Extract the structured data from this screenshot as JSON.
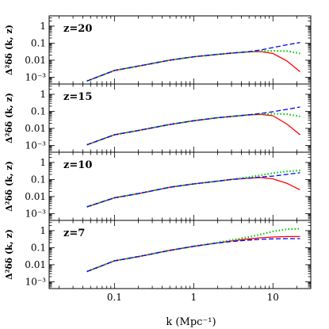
{
  "chart_data": [
    {
      "type": "line",
      "panel_label": "z=20",
      "ylabel": "Δ²δδ (k, z)",
      "xscale": "log",
      "yscale": "log",
      "xlim": [
        0.015,
        30
      ],
      "ylim": [
        0.0004,
        4
      ],
      "yticks": [
        1,
        0.1,
        0.01,
        0.001
      ],
      "ytick_labels": [
        "1",
        "0.1",
        "0.01",
        "10⁻³"
      ],
      "grid": false,
      "series": [
        {
          "color": "#ff0000",
          "style": "solid",
          "x": [
            0.045,
            0.1,
            0.2,
            0.5,
            1,
            2,
            3,
            5,
            7,
            10,
            15,
            22
          ],
          "y": [
            0.0006,
            0.0025,
            0.0045,
            0.01,
            0.016,
            0.022,
            0.026,
            0.031,
            0.032,
            0.025,
            0.009,
            0.0021
          ]
        },
        {
          "color": "#00cc00",
          "style": "dotted",
          "x": [
            0.045,
            0.1,
            0.2,
            0.5,
            1,
            2,
            3,
            5,
            7,
            10,
            15,
            22
          ],
          "y": [
            0.0006,
            0.0025,
            0.0045,
            0.01,
            0.016,
            0.022,
            0.026,
            0.031,
            0.034,
            0.036,
            0.034,
            0.025
          ]
        },
        {
          "color": "#0000ff",
          "style": "dashed",
          "x": [
            0.045,
            0.1,
            0.2,
            0.5,
            1,
            2,
            3,
            5,
            7,
            10,
            15,
            22
          ],
          "y": [
            0.0006,
            0.0025,
            0.0045,
            0.01,
            0.016,
            0.022,
            0.026,
            0.032,
            0.04,
            0.055,
            0.08,
            0.11
          ]
        }
      ]
    },
    {
      "type": "line",
      "panel_label": "z=15",
      "ylabel": "Δ²δδ (k, z)",
      "xscale": "log",
      "yscale": "log",
      "xlim": [
        0.015,
        30
      ],
      "ylim": [
        0.0004,
        4
      ],
      "yticks": [
        1,
        0.1,
        0.01,
        0.001
      ],
      "ytick_labels": [
        "1",
        "0.1",
        "0.01",
        "10⁻³"
      ],
      "grid": false,
      "series": [
        {
          "color": "#ff0000",
          "style": "solid",
          "x": [
            0.045,
            0.1,
            0.2,
            0.5,
            1,
            2,
            3,
            5,
            7,
            10,
            15,
            22
          ],
          "y": [
            0.0011,
            0.0042,
            0.0075,
            0.017,
            0.028,
            0.042,
            0.05,
            0.062,
            0.066,
            0.055,
            0.018,
            0.0042
          ]
        },
        {
          "color": "#00cc00",
          "style": "dotted",
          "x": [
            0.045,
            0.1,
            0.2,
            0.5,
            1,
            2,
            3,
            5,
            7,
            10,
            15,
            22
          ],
          "y": [
            0.0011,
            0.0042,
            0.0075,
            0.017,
            0.028,
            0.042,
            0.05,
            0.062,
            0.068,
            0.072,
            0.068,
            0.05
          ]
        },
        {
          "color": "#0000ff",
          "style": "dashed",
          "x": [
            0.045,
            0.1,
            0.2,
            0.5,
            1,
            2,
            3,
            5,
            7,
            10,
            15,
            22
          ],
          "y": [
            0.0011,
            0.0042,
            0.0075,
            0.017,
            0.028,
            0.042,
            0.05,
            0.063,
            0.075,
            0.095,
            0.13,
            0.18
          ]
        }
      ]
    },
    {
      "type": "line",
      "panel_label": "z=10",
      "ylabel": "Δ²δδ (k, z)",
      "xscale": "log",
      "yscale": "log",
      "xlim": [
        0.015,
        30
      ],
      "ylim": [
        0.0004,
        4
      ],
      "yticks": [
        1,
        0.1,
        0.01,
        0.001
      ],
      "ytick_labels": [
        "1",
        "0.1",
        "0.01",
        "10⁻³"
      ],
      "grid": false,
      "series": [
        {
          "color": "#ff0000",
          "style": "solid",
          "x": [
            0.045,
            0.1,
            0.2,
            0.5,
            1,
            2,
            3,
            5,
            7,
            10,
            15,
            22
          ],
          "y": [
            0.0025,
            0.0085,
            0.015,
            0.035,
            0.055,
            0.08,
            0.1,
            0.12,
            0.13,
            0.11,
            0.06,
            0.025
          ]
        },
        {
          "color": "#00cc00",
          "style": "dotted",
          "x": [
            0.045,
            0.1,
            0.2,
            0.5,
            1,
            2,
            3,
            5,
            7,
            10,
            15,
            22
          ],
          "y": [
            0.0025,
            0.0085,
            0.015,
            0.035,
            0.055,
            0.08,
            0.1,
            0.14,
            0.18,
            0.24,
            0.3,
            0.34
          ]
        },
        {
          "color": "#0000ff",
          "style": "dashed",
          "x": [
            0.045,
            0.1,
            0.2,
            0.5,
            1,
            2,
            3,
            5,
            7,
            10,
            15,
            22
          ],
          "y": [
            0.0025,
            0.0085,
            0.015,
            0.035,
            0.055,
            0.08,
            0.1,
            0.12,
            0.14,
            0.16,
            0.2,
            0.25
          ]
        }
      ]
    },
    {
      "type": "line",
      "panel_label": "z=7",
      "xlabel": "k (Mpc⁻¹)",
      "ylabel": "Δ²δδ (k, z)",
      "xscale": "log",
      "yscale": "log",
      "xlim": [
        0.015,
        30
      ],
      "ylim": [
        0.0004,
        4
      ],
      "xticks": [
        0.1,
        1,
        10
      ],
      "xtick_labels": [
        "0.1",
        "1",
        "10"
      ],
      "yticks": [
        1,
        0.1,
        0.01,
        0.001
      ],
      "ytick_labels": [
        "1",
        "0.1",
        "0.01",
        "10⁻³"
      ],
      "grid": false,
      "series": [
        {
          "color": "#ff0000",
          "style": "solid",
          "x": [
            0.045,
            0.1,
            0.2,
            0.5,
            1,
            2,
            3,
            5,
            7,
            10,
            15,
            22
          ],
          "y": [
            0.004,
            0.017,
            0.03,
            0.07,
            0.12,
            0.19,
            0.25,
            0.33,
            0.38,
            0.42,
            0.45,
            0.45
          ]
        },
        {
          "color": "#00cc00",
          "style": "dotted",
          "x": [
            0.045,
            0.1,
            0.2,
            0.5,
            1,
            2,
            3,
            5,
            7,
            10,
            15,
            22
          ],
          "y": [
            0.004,
            0.017,
            0.03,
            0.07,
            0.12,
            0.2,
            0.28,
            0.42,
            0.6,
            0.9,
            1.2,
            1.3
          ]
        },
        {
          "color": "#0000ff",
          "style": "dashed",
          "x": [
            0.045,
            0.1,
            0.2,
            0.5,
            1,
            2,
            3,
            5,
            7,
            10,
            15,
            22
          ],
          "y": [
            0.004,
            0.017,
            0.03,
            0.07,
            0.12,
            0.19,
            0.23,
            0.28,
            0.31,
            0.33,
            0.34,
            0.34
          ]
        }
      ]
    }
  ]
}
